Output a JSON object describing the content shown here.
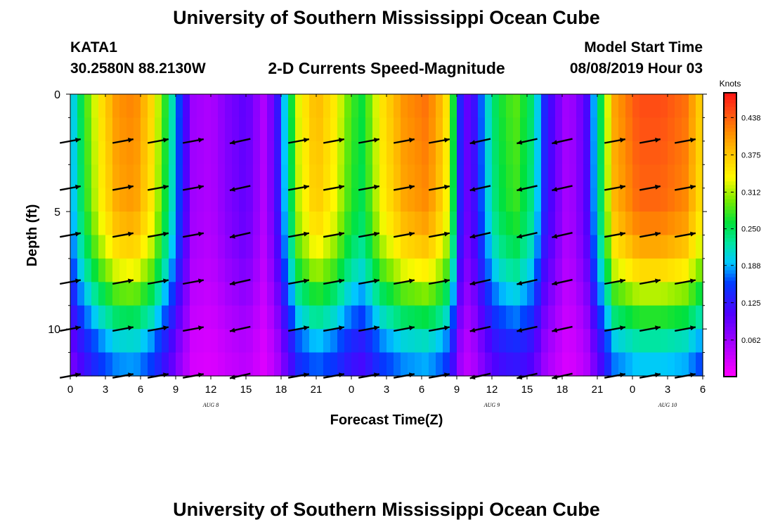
{
  "header": {
    "title": "University of Southern Mississippi Ocean Cube",
    "station_id": "KATA1",
    "station_coords": "30.2580N 88.2130W",
    "product_title": "2-D Currents Speed-Magnitude",
    "model_label": "Model Start Time",
    "model_start": "08/08/2019 Hour 03"
  },
  "footer": {
    "title": "University of Southern Mississippi Ocean Cube"
  },
  "chart_data": {
    "type": "heatmap",
    "title": "2-D Currents Speed-Magnitude",
    "xlabel": "Forecast Time(Z)",
    "ylabel": "Depth (ft)",
    "x_range_hours": [
      0,
      54
    ],
    "xtick_hours": [
      0,
      3,
      6,
      9,
      12,
      15,
      18,
      21,
      24,
      27,
      30,
      33,
      36,
      39,
      42,
      45,
      48,
      51,
      54
    ],
    "xtick_labels": [
      "0",
      "3",
      "6",
      "9",
      "12",
      "15",
      "18",
      "21",
      "0",
      "3",
      "6",
      "9",
      "12",
      "15",
      "18",
      "21",
      "0",
      "3",
      "6"
    ],
    "date_labels": [
      {
        "text": "AUG  8",
        "hour": 12
      },
      {
        "text": "AUG  9",
        "hour": 36
      },
      {
        "text": "AUG  10",
        "hour": 51
      }
    ],
    "y_range_ft": [
      0,
      12
    ],
    "ytick_labels": [
      0,
      5,
      10
    ],
    "colorbar": {
      "label": "Knots",
      "range": [
        0,
        0.48
      ],
      "tick_values": [
        0.062,
        0.125,
        0.188,
        0.25,
        0.312,
        0.375,
        0.438
      ],
      "tick_labels": [
        "0.062",
        "0.125",
        "0.188",
        "0.250",
        "0.312",
        "0.375",
        "0.438"
      ]
    },
    "hour_step": 0.6,
    "depth_levels_ft": [
      1,
      2,
      3,
      4,
      5,
      6,
      7,
      8,
      9,
      10,
      11,
      12
    ],
    "surface_speed_keypoints": [
      [
        0,
        0.18
      ],
      [
        1,
        0.26
      ],
      [
        2.5,
        0.35
      ],
      [
        4,
        0.41
      ],
      [
        5.5,
        0.42
      ],
      [
        7,
        0.36
      ],
      [
        8.5,
        0.24
      ],
      [
        9.5,
        0.14
      ],
      [
        10.5,
        0.06
      ],
      [
        12,
        0.05
      ],
      [
        13.5,
        0.08
      ],
      [
        15,
        0.1
      ],
      [
        16.5,
        0.05
      ],
      [
        17.5,
        0.1
      ],
      [
        18.5,
        0.22
      ],
      [
        19.5,
        0.33
      ],
      [
        21,
        0.39
      ],
      [
        22.5,
        0.35
      ],
      [
        24,
        0.28
      ],
      [
        25,
        0.26
      ],
      [
        26.5,
        0.35
      ],
      [
        28.5,
        0.41
      ],
      [
        30.5,
        0.43
      ],
      [
        32,
        0.37
      ],
      [
        33,
        0.22
      ],
      [
        33.5,
        0.08
      ],
      [
        34.5,
        0.12
      ],
      [
        35.5,
        0.2
      ],
      [
        36.5,
        0.26
      ],
      [
        38,
        0.29
      ],
      [
        39.5,
        0.24
      ],
      [
        40.5,
        0.14
      ],
      [
        41.5,
        0.09
      ],
      [
        42.5,
        0.05
      ],
      [
        44,
        0.1
      ],
      [
        45,
        0.22
      ],
      [
        46.5,
        0.4
      ],
      [
        48.5,
        0.45
      ],
      [
        50.5,
        0.45
      ],
      [
        52.5,
        0.43
      ],
      [
        54,
        0.36
      ]
    ],
    "depth_factor_keypoints": [
      [
        0,
        1.0
      ],
      [
        5,
        0.96
      ],
      [
        7,
        0.85
      ],
      [
        9,
        0.65
      ],
      [
        10.5,
        0.5
      ],
      [
        12,
        0.4
      ]
    ],
    "arrow_hours": [
      0,
      4.5,
      7.5,
      10.5,
      14.5,
      19.5,
      22.5,
      25.5,
      28.5,
      31.5,
      35,
      39,
      42,
      46.5,
      49.5,
      52.5
    ],
    "arrow_depths_ft": [
      2,
      4,
      6,
      8,
      10,
      12
    ],
    "arrow_direction_by_hour": [
      1,
      1,
      1,
      1,
      -1,
      1,
      1,
      1,
      1,
      1,
      -1,
      -1,
      -1,
      1,
      1,
      1
    ]
  }
}
